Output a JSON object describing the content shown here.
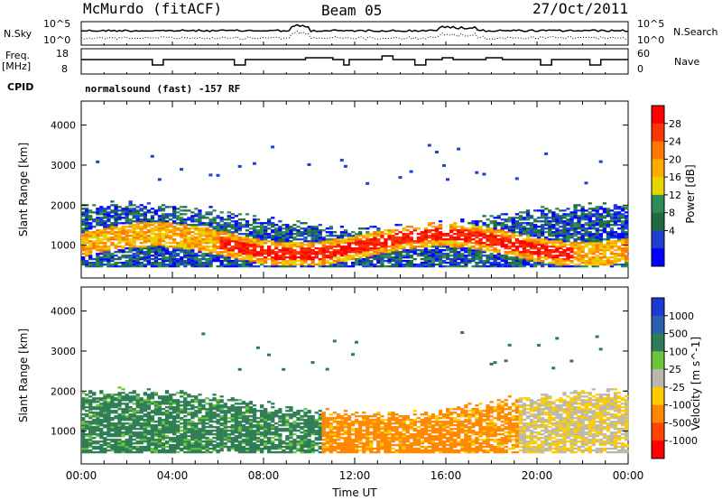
{
  "header": {
    "station": "McMurdo (fitACF)",
    "beam": "Beam 05",
    "date": "27/Oct/2011"
  },
  "top_panels": {
    "nsky_label": "N.Sky",
    "nsky_ticks": [
      "10^5",
      "10^0"
    ],
    "nsearch_label": "N.Search",
    "nsearch_ticks": [
      "10^5",
      "10^0"
    ],
    "freq_label_1": "Freq.",
    "freq_label_2": "[MHz]",
    "freq_ticks": [
      "18",
      "8"
    ],
    "nave_label": "Nave",
    "nave_ticks": [
      "60",
      "0"
    ],
    "cpid_label": "CPID",
    "cpid_text": "normalsound (fast) -157 RF"
  },
  "chart_data": [
    {
      "type": "heatmap",
      "name": "power",
      "ylabel": "Slant Range [km]",
      "y_ticks": [
        1000,
        2000,
        3000,
        4000
      ],
      "ylim": [
        180,
        4600
      ],
      "colorbar": {
        "label": "Power [dB]",
        "ticks": [
          "28",
          "24",
          "20",
          "16",
          "12",
          "8",
          "4"
        ],
        "colors": [
          "#ff0000",
          "#ff3300",
          "#ff7700",
          "#ffaa00",
          "#e8d400",
          "#2e8b57",
          "#1e6b40",
          "#1e40d0",
          "#0000ff"
        ]
      }
    },
    {
      "type": "heatmap",
      "name": "velocity",
      "ylabel": "Slant Range [km]",
      "y_ticks": [
        1000,
        2000,
        3000,
        4000
      ],
      "ylim": [
        180,
        4600
      ],
      "xlabel": "Time UT",
      "x_ticks": [
        "00:00",
        "04:00",
        "08:00",
        "12:00",
        "16:00",
        "20:00",
        "00:00"
      ],
      "colorbar": {
        "label": "Velocity [m s^-1]",
        "ticks": [
          "1000",
          "500",
          "100",
          "25",
          "-25",
          "-100",
          "-500",
          "-1000"
        ],
        "colors": [
          "#1a3ad0",
          "#2b5fb0",
          "#2e7d55",
          "#6bc43a",
          "#b8b8b0",
          "#ffcc00",
          "#ff8800",
          "#ff4400",
          "#ff0000"
        ]
      }
    }
  ]
}
